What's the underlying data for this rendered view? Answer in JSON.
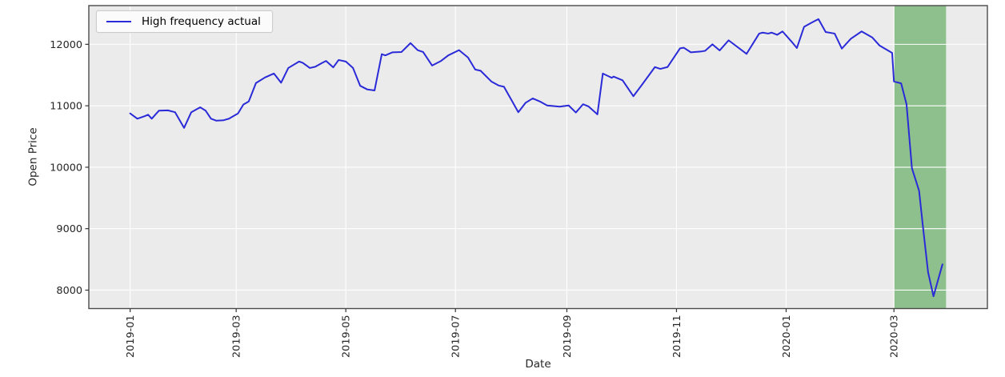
{
  "chart_data": {
    "type": "line",
    "title": "",
    "xlabel": "Date",
    "ylabel": "Open Price",
    "grid": true,
    "legend_position": "upper left",
    "legend": [
      {
        "label": "High frequency actual",
        "color": "#2a2ad8"
      }
    ],
    "colors": {
      "line": "#2a2ad8",
      "highlight_span": "#8dc08d",
      "plot_background": "#ebebeb",
      "gridline": "#ffffff",
      "spine": "#4b4b4b",
      "tick_text": "#262626",
      "figure_background": "#ffffff"
    },
    "xlim": [
      "2018-12-09",
      "2020-04-22"
    ],
    "ylim": [
      7700,
      12630
    ],
    "x_ticks": [
      {
        "label": "2019-01",
        "date": "2019-01-01"
      },
      {
        "label": "2019-03",
        "date": "2019-03-01"
      },
      {
        "label": "2019-05",
        "date": "2019-05-01"
      },
      {
        "label": "2019-07",
        "date": "2019-07-01"
      },
      {
        "label": "2019-09",
        "date": "2019-09-01"
      },
      {
        "label": "2019-11",
        "date": "2019-11-01"
      },
      {
        "label": "2020-01",
        "date": "2020-01-01"
      },
      {
        "label": "2020-03",
        "date": "2020-03-01"
      }
    ],
    "y_ticks": [
      {
        "label": "8000",
        "value": 8000
      },
      {
        "label": "9000",
        "value": 9000
      },
      {
        "label": "10000",
        "value": 10000
      },
      {
        "label": "11000",
        "value": 11000
      },
      {
        "label": "12000",
        "value": 12000
      }
    ],
    "highlight_span": {
      "start": "2020-03-01",
      "end": "2020-03-30",
      "color": "#8dc08d"
    },
    "series": [
      {
        "name": "High frequency actual",
        "color": "#2a2ad8",
        "points": [
          [
            "2019-01-01",
            10875
          ],
          [
            "2019-01-05",
            10790
          ],
          [
            "2019-01-09",
            10830
          ],
          [
            "2019-01-11",
            10855
          ],
          [
            "2019-01-13",
            10790
          ],
          [
            "2019-01-17",
            10920
          ],
          [
            "2019-01-22",
            10925
          ],
          [
            "2019-01-26",
            10895
          ],
          [
            "2019-01-31",
            10640
          ],
          [
            "2019-02-04",
            10895
          ],
          [
            "2019-02-09",
            10975
          ],
          [
            "2019-02-12",
            10920
          ],
          [
            "2019-02-15",
            10790
          ],
          [
            "2019-02-18",
            10757
          ],
          [
            "2019-02-22",
            10765
          ],
          [
            "2019-02-25",
            10790
          ],
          [
            "2019-03-02",
            10875
          ],
          [
            "2019-03-05",
            11020
          ],
          [
            "2019-03-08",
            11070
          ],
          [
            "2019-03-12",
            11370
          ],
          [
            "2019-03-17",
            11460
          ],
          [
            "2019-03-22",
            11525
          ],
          [
            "2019-03-26",
            11375
          ],
          [
            "2019-03-30",
            11615
          ],
          [
            "2019-04-05",
            11720
          ],
          [
            "2019-04-07",
            11700
          ],
          [
            "2019-04-11",
            11615
          ],
          [
            "2019-04-14",
            11635
          ],
          [
            "2019-04-18",
            11700
          ],
          [
            "2019-04-20",
            11730
          ],
          [
            "2019-04-24",
            11625
          ],
          [
            "2019-04-27",
            11745
          ],
          [
            "2019-05-01",
            11720
          ],
          [
            "2019-05-05",
            11615
          ],
          [
            "2019-05-09",
            11325
          ],
          [
            "2019-05-13",
            11265
          ],
          [
            "2019-05-17",
            11250
          ],
          [
            "2019-05-21",
            11840
          ],
          [
            "2019-05-23",
            11820
          ],
          [
            "2019-05-27",
            11870
          ],
          [
            "2019-06-01",
            11875
          ],
          [
            "2019-06-06",
            12020
          ],
          [
            "2019-06-10",
            11905
          ],
          [
            "2019-06-13",
            11875
          ],
          [
            "2019-06-18",
            11655
          ],
          [
            "2019-06-23",
            11730
          ],
          [
            "2019-06-27",
            11820
          ],
          [
            "2019-07-03",
            11905
          ],
          [
            "2019-07-08",
            11785
          ],
          [
            "2019-07-12",
            11590
          ],
          [
            "2019-07-15",
            11570
          ],
          [
            "2019-07-21",
            11395
          ],
          [
            "2019-07-25",
            11330
          ],
          [
            "2019-07-28",
            11310
          ],
          [
            "2019-08-05",
            10895
          ],
          [
            "2019-08-09",
            11048
          ],
          [
            "2019-08-13",
            11120
          ],
          [
            "2019-08-17",
            11070
          ],
          [
            "2019-08-21",
            11005
          ],
          [
            "2019-08-28",
            10985
          ],
          [
            "2019-09-02",
            11005
          ],
          [
            "2019-09-06",
            10890
          ],
          [
            "2019-09-10",
            11025
          ],
          [
            "2019-09-13",
            10990
          ],
          [
            "2019-09-18",
            10860
          ],
          [
            "2019-09-21",
            11525
          ],
          [
            "2019-09-26",
            11455
          ],
          [
            "2019-09-27",
            11475
          ],
          [
            "2019-10-02",
            11415
          ],
          [
            "2019-10-08",
            11155
          ],
          [
            "2019-10-13",
            11350
          ],
          [
            "2019-10-20",
            11630
          ],
          [
            "2019-10-23",
            11600
          ],
          [
            "2019-10-27",
            11630
          ],
          [
            "2019-11-03",
            11935
          ],
          [
            "2019-11-05",
            11945
          ],
          [
            "2019-11-09",
            11870
          ],
          [
            "2019-11-15",
            11885
          ],
          [
            "2019-11-17",
            11895
          ],
          [
            "2019-11-21",
            12000
          ],
          [
            "2019-11-25",
            11900
          ],
          [
            "2019-11-30",
            12065
          ],
          [
            "2019-12-10",
            11845
          ],
          [
            "2019-12-17",
            12175
          ],
          [
            "2019-12-19",
            12190
          ],
          [
            "2019-12-22",
            12175
          ],
          [
            "2019-12-24",
            12190
          ],
          [
            "2019-12-27",
            12155
          ],
          [
            "2019-12-30",
            12210
          ],
          [
            "2020-01-04",
            12045
          ],
          [
            "2020-01-07",
            11940
          ],
          [
            "2020-01-11",
            12285
          ],
          [
            "2020-01-15",
            12350
          ],
          [
            "2020-01-19",
            12410
          ],
          [
            "2020-01-23",
            12200
          ],
          [
            "2020-01-28",
            12175
          ],
          [
            "2020-02-01",
            11930
          ],
          [
            "2020-02-06",
            12090
          ],
          [
            "2020-02-12",
            12210
          ],
          [
            "2020-02-18",
            12110
          ],
          [
            "2020-02-22",
            11980
          ],
          [
            "2020-02-29",
            11860
          ],
          [
            "2020-03-01",
            11395
          ],
          [
            "2020-03-05",
            11365
          ],
          [
            "2020-03-08",
            11025
          ],
          [
            "2020-03-11",
            9985
          ],
          [
            "2020-03-15",
            9615
          ],
          [
            "2020-03-17",
            9070
          ],
          [
            "2020-03-20",
            8290
          ],
          [
            "2020-03-23",
            7900
          ],
          [
            "2020-03-28",
            8420
          ]
        ]
      }
    ]
  }
}
